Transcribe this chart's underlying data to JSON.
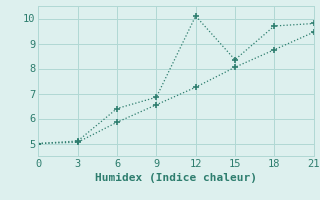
{
  "xlabel": "Humidex (Indice chaleur)",
  "line1_x": [
    0,
    3,
    6,
    9,
    12,
    15,
    18,
    21
  ],
  "line1_y": [
    5.0,
    5.1,
    6.4,
    6.85,
    10.1,
    8.35,
    9.7,
    9.8
  ],
  "line2_x": [
    0,
    3,
    6,
    9,
    12,
    15,
    18,
    21
  ],
  "line2_y": [
    5.0,
    5.05,
    5.85,
    6.55,
    7.25,
    8.05,
    8.75,
    9.45
  ],
  "line_color": "#2d7d6e",
  "bg_color": "#ddf0ee",
  "grid_color": "#b0d8d4",
  "xlim": [
    0,
    21
  ],
  "ylim": [
    4.5,
    10.5
  ],
  "xticks": [
    0,
    3,
    6,
    9,
    12,
    15,
    18,
    21
  ],
  "yticks": [
    5,
    6,
    7,
    8,
    9,
    10
  ],
  "xlabel_fontsize": 8,
  "tick_fontsize": 7.5
}
